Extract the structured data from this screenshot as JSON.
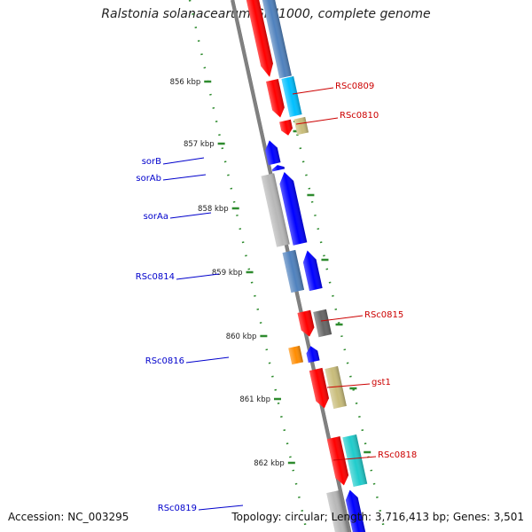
{
  "title": "Ralstonia solanacearum GMI1000, complete genome",
  "footer": {
    "accession": "Accession: NC_003295",
    "summary": "Topology: circular; Length: 3,716,413 bp; Genes: 3,501"
  },
  "colors": {
    "backbone": "#808080",
    "ruler": "#2e8b2e",
    "forward_label": "#0000cc",
    "reverse_label": "#cc0000"
  },
  "ticks": [
    {
      "label": "856 kbp"
    },
    {
      "label": "857 kbp"
    },
    {
      "label": "858 kbp"
    },
    {
      "label": "859 kbp"
    },
    {
      "label": "860 kbp"
    },
    {
      "label": "861 kbp"
    },
    {
      "label": "862 kbp"
    }
  ],
  "genes": [
    {
      "name": "",
      "strand": "reverse",
      "color": "#ff0000"
    },
    {
      "name": "",
      "strand": "reverse",
      "color": "#4f81bd"
    },
    {
      "name": "RSc0809",
      "strand": "reverse",
      "color": "#ff0000"
    },
    {
      "name": "",
      "strand": "reverse",
      "color": "#00bfff"
    },
    {
      "name": "RSc0810",
      "strand": "reverse",
      "color": "#ff0000"
    },
    {
      "name": "",
      "strand": "reverse",
      "color": "#c8bc7a"
    },
    {
      "name": "sorB",
      "strand": "forward",
      "color": "#0000ff"
    },
    {
      "name": "sorAb",
      "strand": "forward",
      "color": "#0000ff"
    },
    {
      "name": "sorAa",
      "strand": "forward",
      "color": "#0000ff"
    },
    {
      "name": "",
      "strand": "forward",
      "color": "#b8b8b8"
    },
    {
      "name": "RSc0814",
      "strand": "forward",
      "color": "#0000ff"
    },
    {
      "name": "",
      "strand": "forward",
      "color": "#4f81bd"
    },
    {
      "name": "RSc0815",
      "strand": "reverse",
      "color": "#ff0000"
    },
    {
      "name": "",
      "strand": "reverse",
      "color": "#666666"
    },
    {
      "name": "RSc0816",
      "strand": "forward",
      "color": "#0000ff"
    },
    {
      "name": "",
      "strand": "forward",
      "color": "#ff8c00"
    },
    {
      "name": "gst1",
      "strand": "reverse",
      "color": "#ff0000"
    },
    {
      "name": "",
      "strand": "reverse",
      "color": "#c8bc7a"
    },
    {
      "name": "RSc0818",
      "strand": "reverse",
      "color": "#ff0000"
    },
    {
      "name": "",
      "strand": "reverse",
      "color": "#20cccc"
    },
    {
      "name": "RSc0819",
      "strand": "forward",
      "color": "#0000ff"
    },
    {
      "name": "",
      "strand": "forward",
      "color": "#b8b8b8"
    }
  ]
}
